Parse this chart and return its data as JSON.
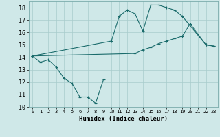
{
  "title": "",
  "xlabel": "Humidex (Indice chaleur)",
  "ylabel": "",
  "background_color": "#cfe8e8",
  "grid_color": "#a8cccc",
  "line_color": "#1a6b6b",
  "xlim": [
    -0.5,
    23.5
  ],
  "ylim": [
    10,
    18.5
  ],
  "yticks": [
    10,
    11,
    12,
    13,
    14,
    15,
    16,
    17,
    18
  ],
  "xticks": [
    0,
    1,
    2,
    3,
    4,
    5,
    6,
    7,
    8,
    9,
    10,
    11,
    12,
    13,
    14,
    15,
    16,
    17,
    18,
    19,
    20,
    21,
    22,
    23
  ],
  "line1_x": [
    0,
    1,
    2,
    3,
    4,
    5,
    6,
    7,
    8,
    9
  ],
  "line1_y": [
    14.1,
    13.6,
    13.8,
    13.2,
    12.3,
    11.9,
    10.8,
    10.8,
    10.3,
    12.2
  ],
  "line2_x": [
    0,
    10,
    11,
    12,
    13,
    14,
    15,
    16,
    17,
    18,
    19,
    22,
    23
  ],
  "line2_y": [
    14.1,
    15.3,
    17.3,
    17.8,
    17.5,
    16.1,
    18.2,
    18.2,
    18.0,
    17.8,
    17.3,
    15.0,
    14.9
  ],
  "line3_x": [
    0,
    13,
    14,
    15,
    16,
    17,
    18,
    19,
    20,
    22,
    23
  ],
  "line3_y": [
    14.1,
    14.3,
    14.6,
    14.8,
    15.1,
    15.3,
    15.5,
    15.7,
    16.7,
    15.0,
    14.9
  ]
}
